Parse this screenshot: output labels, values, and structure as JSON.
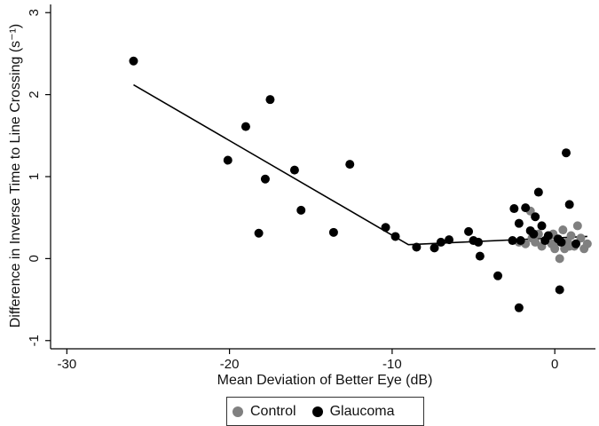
{
  "chart_data": {
    "type": "scatter",
    "xlabel": "Mean Deviation of Better Eye (dB)",
    "ylabel": "Difference in Inverse Time to Line Crossing (s⁻¹)",
    "xlim": [
      -31,
      2.5
    ],
    "ylim": [
      -1.1,
      3.1
    ],
    "xticks": [
      -30,
      -20,
      -10,
      0
    ],
    "yticks": [
      -1,
      0,
      1,
      2,
      3
    ],
    "grid": false,
    "legend_position": "bottom-center",
    "series": [
      {
        "name": "Control",
        "color": "#808080",
        "points": [
          [
            -1.5,
            0.58
          ],
          [
            -1.2,
            0.2
          ],
          [
            -1.0,
            0.3
          ],
          [
            -0.8,
            0.15
          ],
          [
            -0.6,
            0.22
          ],
          [
            -0.4,
            0.25
          ],
          [
            -0.2,
            0.18
          ],
          [
            0.0,
            0.12
          ],
          [
            0.1,
            0.2
          ],
          [
            0.3,
            0.0
          ],
          [
            0.5,
            0.35
          ],
          [
            0.6,
            0.12
          ],
          [
            0.8,
            0.2
          ],
          [
            1.0,
            0.28
          ],
          [
            1.2,
            0.15
          ],
          [
            1.4,
            0.4
          ],
          [
            1.6,
            0.25
          ],
          [
            1.8,
            0.12
          ],
          [
            2.0,
            0.18
          ],
          [
            -1.8,
            0.18
          ],
          [
            -2.2,
            0.2
          ],
          [
            -1.4,
            0.25
          ],
          [
            -0.1,
            0.3
          ],
          [
            0.9,
            0.15
          ]
        ]
      },
      {
        "name": "Glaucoma",
        "color": "#000000",
        "points": [
          [
            -25.9,
            2.41
          ],
          [
            -20.1,
            1.2
          ],
          [
            -19.0,
            1.61
          ],
          [
            -18.2,
            0.31
          ],
          [
            -17.8,
            0.97
          ],
          [
            -17.5,
            1.94
          ],
          [
            -16.0,
            1.08
          ],
          [
            -15.6,
            0.59
          ],
          [
            -13.6,
            0.32
          ],
          [
            -12.6,
            1.15
          ],
          [
            -10.4,
            0.38
          ],
          [
            -9.8,
            0.27
          ],
          [
            -8.5,
            0.14
          ],
          [
            -7.4,
            0.13
          ],
          [
            -7.0,
            0.2
          ],
          [
            -6.5,
            0.23
          ],
          [
            -5.3,
            0.33
          ],
          [
            -5.0,
            0.22
          ],
          [
            -4.7,
            0.2
          ],
          [
            -4.6,
            0.03
          ],
          [
            -3.5,
            -0.21
          ],
          [
            -2.6,
            0.22
          ],
          [
            -2.5,
            0.61
          ],
          [
            -2.2,
            0.43
          ],
          [
            -2.1,
            0.22
          ],
          [
            -2.2,
            -0.6
          ],
          [
            -1.8,
            0.62
          ],
          [
            -1.5,
            0.34
          ],
          [
            -1.2,
            0.51
          ],
          [
            -1.0,
            0.81
          ],
          [
            -0.8,
            0.4
          ],
          [
            -0.6,
            0.22
          ],
          [
            -0.4,
            0.28
          ],
          [
            0.2,
            0.24
          ],
          [
            0.3,
            -0.38
          ],
          [
            0.4,
            0.2
          ],
          [
            0.7,
            1.29
          ],
          [
            0.9,
            0.66
          ],
          [
            1.3,
            0.18
          ],
          [
            -1.3,
            0.3
          ]
        ]
      }
    ],
    "fit_line": {
      "color": "#000000",
      "points": [
        [
          -25.9,
          2.12
        ],
        [
          -9.0,
          0.17
        ],
        [
          2.0,
          0.27
        ]
      ]
    }
  }
}
